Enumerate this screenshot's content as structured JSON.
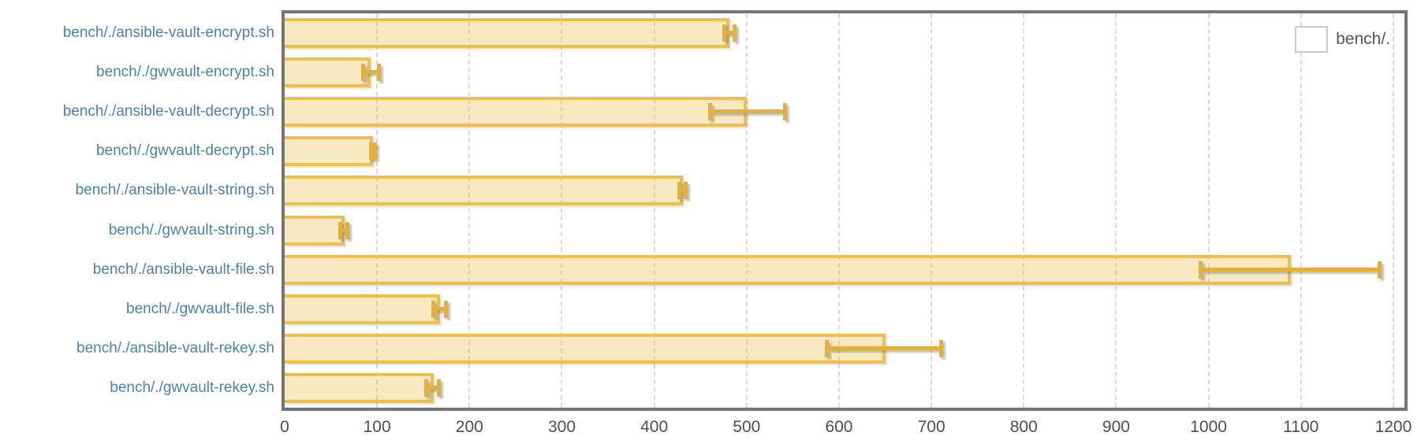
{
  "chart_data": {
    "type": "bar",
    "orientation": "horizontal",
    "title": "",
    "xlabel": "",
    "ylabel": "",
    "categories": [
      "bench/./ansible-vault-encrypt.sh",
      "bench/./gwvault-encrypt.sh",
      "bench/./ansible-vault-decrypt.sh",
      "bench/./gwvault-decrypt.sh",
      "bench/./ansible-vault-string.sh",
      "bench/./gwvault-string.sh",
      "bench/./ansible-vault-file.sh",
      "bench/./gwvault-file.sh",
      "bench/./ansible-vault-rekey.sh",
      "bench/./gwvault-rekey.sh"
    ],
    "series": [
      {
        "name": "bench/.",
        "values": [
          481,
          93,
          500,
          96,
          431,
          65,
          1089,
          168,
          650,
          161
        ],
        "error_low": [
          474,
          83,
          458,
          91,
          425,
          58,
          989,
          159,
          585,
          151
        ],
        "error_high": [
          489,
          104,
          544,
          100,
          436,
          70,
          1187,
          177,
          713,
          169
        ]
      }
    ],
    "x_ticks": [
      0,
      100,
      200,
      300,
      400,
      500,
      600,
      700,
      800,
      900,
      1000,
      1100,
      1200
    ],
    "xlim": [
      0,
      1212
    ],
    "grid": "vertical-dashed",
    "legend": {
      "label": "bench/.",
      "position": "top-right"
    },
    "colors": {
      "bar_fill": "rgba(236,191,79,0.35)",
      "bar_border": "#ecbf4f",
      "error_bar": "#e2b13d",
      "category_label": "#4a81b1",
      "tick_label": "#4e4e4e",
      "plot_border": "#757575",
      "gridline": "#dadada",
      "legend_swatch": "#ebbf4e",
      "legend_text": "#565656"
    }
  }
}
